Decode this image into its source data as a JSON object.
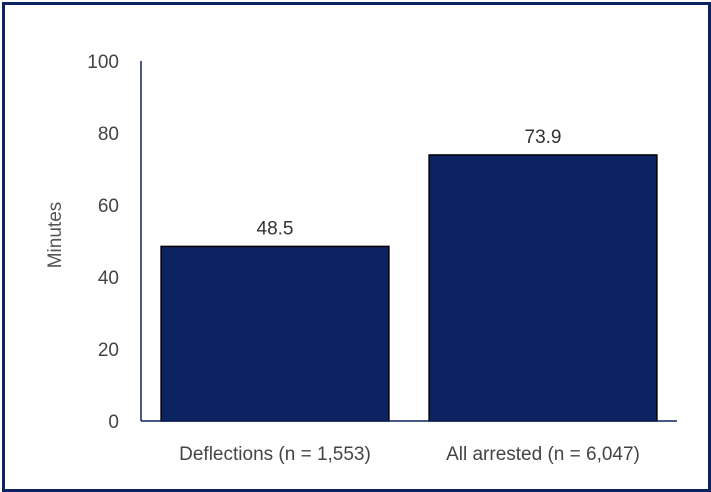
{
  "chart_data": {
    "type": "bar",
    "title": "",
    "xlabel": "",
    "ylabel": "Minutes",
    "ylim": [
      0,
      100
    ],
    "yticks": [
      0,
      20,
      40,
      60,
      80,
      100
    ],
    "categories": [
      "Deflections (n = 1,553)",
      "All arrested (n = 6,047)"
    ],
    "values": [
      48.5,
      73.9
    ],
    "data_labels": [
      "48.5",
      "73.9"
    ],
    "bar_color": "#0b2360",
    "bar_outline": "#000000",
    "grid": false,
    "legend": "none"
  },
  "frame_color": "#0b2360"
}
